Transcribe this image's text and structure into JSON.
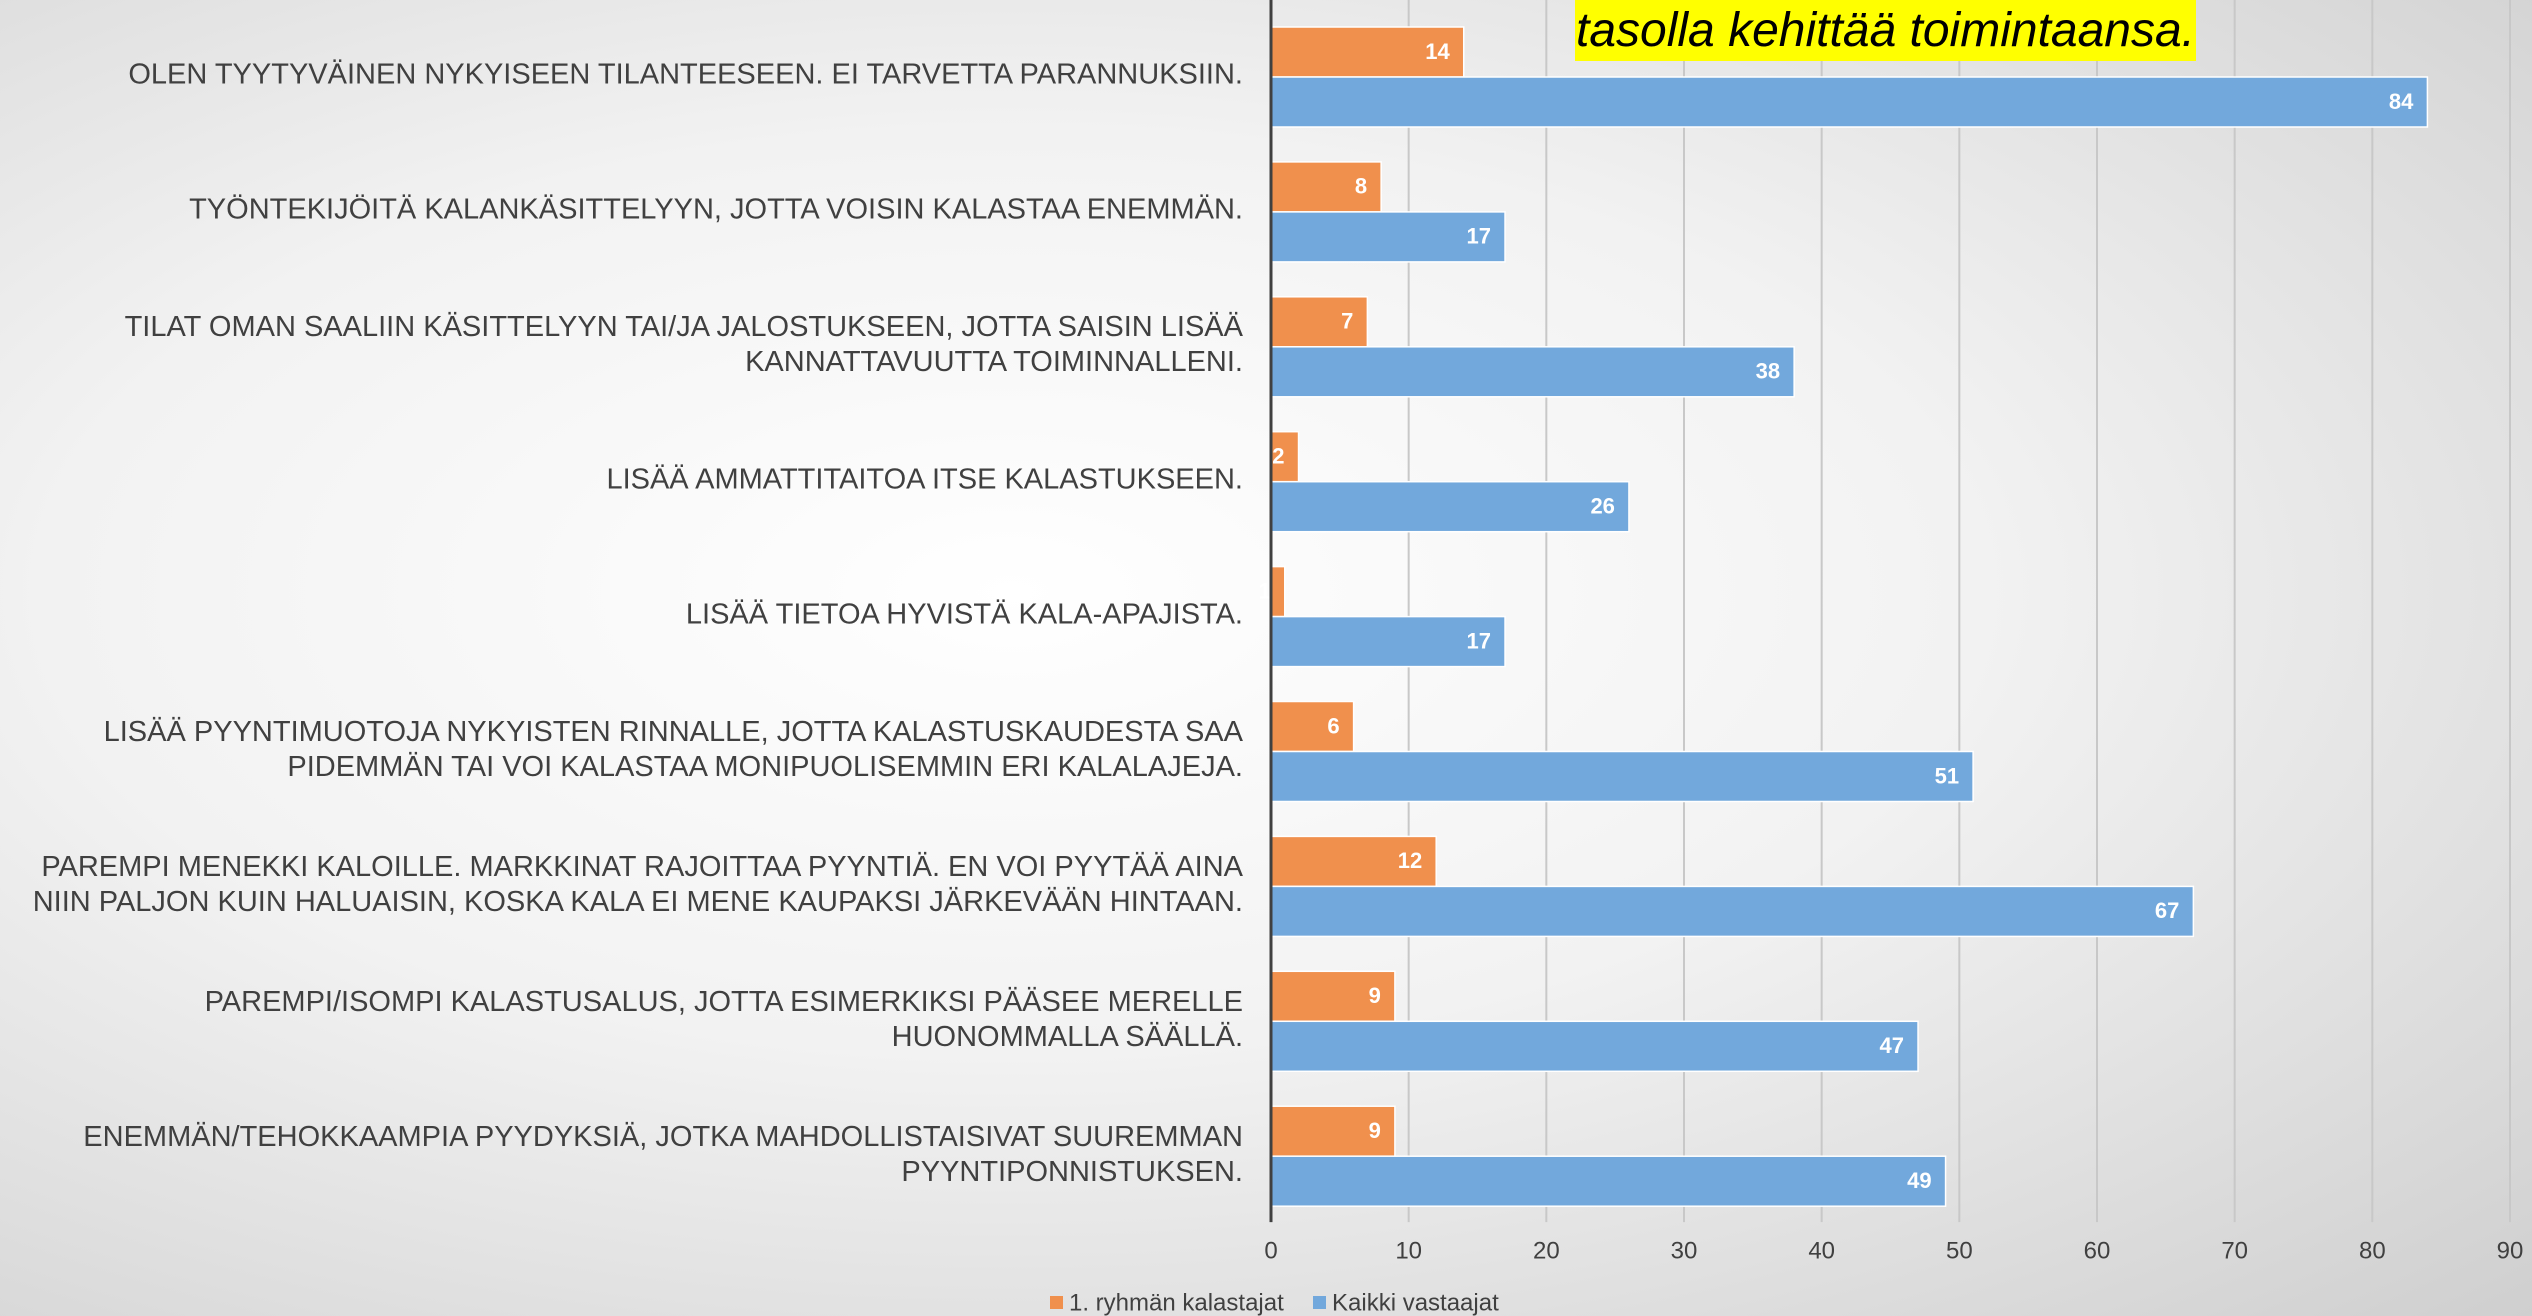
{
  "chart_data": {
    "type": "barh",
    "title": "tasolla kehittää toimintaansa.",
    "categories": [
      "OLEN TYYTYVÄINEN NYKYISEEN TILANTEESEEN. EI TARVETTA PARANNUKSIIN.",
      "TYÖNTEKIJÖITÄ KALANKÄSITTELYYN, JOTTA VOISIN KALASTAA ENEMMÄN.",
      "TILAT OMAN SAALIIN KÄSITTELYYN TAI/JA JALOSTUKSEEN, JOTTA SAISIN LISÄÄ\nKANNATTAVUUTTA TOIMINNALLENI.",
      "LISÄÄ AMMATTITAITOA ITSE KALASTUKSEEN.",
      "LISÄÄ TIETOA HYVISTÄ KALA-APAJISTA.",
      "LISÄÄ PYYNTIMUOTOJA NYKYISTEN RINNALLE, JOTTA KALASTUSKAUDESTA SAA\nPIDEMMÄN TAI VOI KALASTAA MONIPUOLISEMMIN ERI KALALAJEJA.",
      "PAREMPI MENEKKI KALOILLE. MARKKINAT RAJOITTAA PYYNTIÄ. EN VOI PYYTÄÄ AINA\nNIIN PALJON KUIN HALUAISIN, KOSKA KALA EI MENE KAUPAKSI JÄRKEVÄÄN HINTAAN.",
      "PAREMPI/ISOMPI KALASTUSALUS, JOTTA ESIMERKIKSI PÄÄSEE MERELLE\nHUONOMMALLA SÄÄLLÄ.",
      "ENEMMÄN/TEHOKKAAMPIA PYYDYKSIÄ, JOTKA MAHDOLLISTAISIVAT SUUREMMAN\nPYYNTIPONNISTUKSEN."
    ],
    "series": [
      {
        "name": "1. ryhmän kalastajat",
        "color": "#f0904d",
        "values": [
          14,
          8,
          7,
          2,
          1,
          6,
          12,
          9,
          9
        ]
      },
      {
        "name": "Kaikki vastaajat",
        "color": "#72a8dc",
        "values": [
          84,
          17,
          38,
          26,
          17,
          51,
          67,
          47,
          49
        ]
      }
    ],
    "xlim": [
      0,
      90
    ],
    "xticks": [
      0,
      10,
      20,
      30,
      40,
      50,
      60,
      70,
      80,
      90
    ],
    "grid": true
  }
}
